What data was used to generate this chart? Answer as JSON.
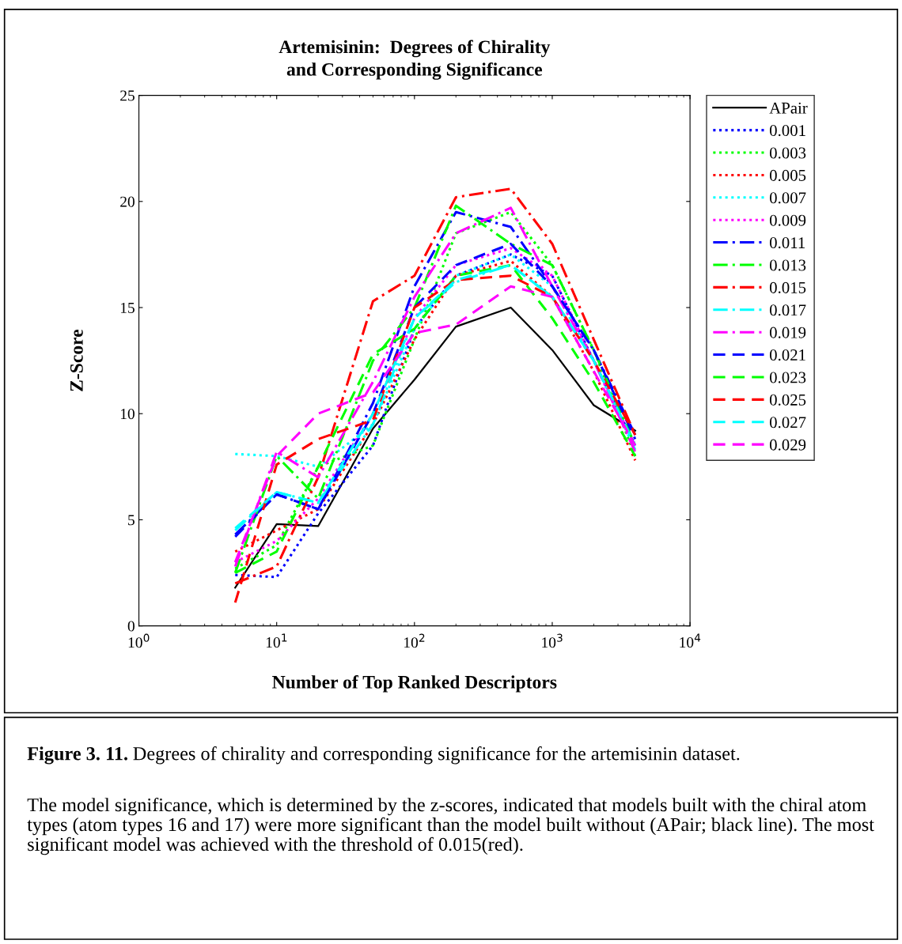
{
  "chart_data": {
    "type": "line",
    "title": "Artemisinin:  Degrees of Chirality\nand Corresponding Significance",
    "xlabel": "Number of Top Ranked Descriptors",
    "ylabel": "Z-Score",
    "x": [
      5,
      10,
      20,
      50,
      100,
      200,
      500,
      1000,
      2000,
      4000
    ],
    "log": "x",
    "xlim": [
      1,
      10000
    ],
    "xticks": [
      {
        "value": 1,
        "label": "10$^{0}$"
      },
      {
        "value": 10,
        "label": "10$^{1}$"
      },
      {
        "value": 100,
        "label": "10$^{2}$"
      },
      {
        "value": 1000,
        "label": "10$^{3}$"
      },
      {
        "value": 10000,
        "label": "10$^{4}$"
      }
    ],
    "ylim": [
      0,
      25
    ],
    "yticks": [
      0,
      5,
      10,
      15,
      20,
      25
    ],
    "grid": false,
    "legend": "right",
    "marker": "none",
    "series": [
      {
        "name": "APair",
        "color": "#000000",
        "line_style": "solid",
        "values": [
          1.8,
          4.8,
          4.7,
          9.3,
          11.6,
          14.1,
          15.0,
          13.0,
          10.4,
          9.2
        ]
      },
      {
        "name": "0.001",
        "color": "#0000ff",
        "line_style": "dotted",
        "values": [
          2.4,
          2.3,
          5.3,
          8.5,
          14.0,
          16.5,
          17.5,
          16.5,
          12.5,
          8.5
        ]
      },
      {
        "name": "0.003",
        "color": "#00ff00",
        "line_style": "dotted",
        "values": [
          2.7,
          3.8,
          7.5,
          8.5,
          13.5,
          18.5,
          19.5,
          17.0,
          13.0,
          8.0
        ]
      },
      {
        "name": "0.005",
        "color": "#ff0000",
        "line_style": "dotted",
        "values": [
          3.5,
          4.5,
          5.5,
          9.5,
          13.5,
          16.5,
          17.2,
          15.5,
          12.0,
          7.8
        ]
      },
      {
        "name": "0.007",
        "color": "#00ffff",
        "line_style": "dotted",
        "values": [
          8.1,
          8.0,
          7.5,
          9.5,
          14.0,
          16.5,
          17.5,
          16.0,
          12.5,
          8.5
        ]
      },
      {
        "name": "0.009",
        "color": "#ff00ff",
        "line_style": "dotted",
        "values": [
          3.0,
          4.0,
          6.0,
          10.0,
          14.5,
          17.0,
          17.8,
          16.5,
          12.5,
          8.5
        ]
      },
      {
        "name": "0.011",
        "color": "#0000ff",
        "line_style": "dashdot",
        "values": [
          4.3,
          6.2,
          5.5,
          10.5,
          16.0,
          19.5,
          18.8,
          16.0,
          13.0,
          9.0
        ]
      },
      {
        "name": "0.013",
        "color": "#00ff00",
        "line_style": "dashdot",
        "values": [
          2.5,
          8.0,
          6.0,
          12.5,
          15.0,
          19.8,
          18.0,
          17.0,
          13.0,
          8.5
        ]
      },
      {
        "name": "0.015",
        "color": "#ff0000",
        "line_style": "dashdot",
        "values": [
          2.0,
          2.8,
          7.0,
          15.3,
          16.5,
          20.2,
          20.6,
          18.0,
          13.5,
          9.0
        ]
      },
      {
        "name": "0.017",
        "color": "#00ffff",
        "line_style": "dashdot",
        "values": [
          4.5,
          6.3,
          5.8,
          9.5,
          14.5,
          16.2,
          17.0,
          15.5,
          12.5,
          8.3
        ]
      },
      {
        "name": "0.019",
        "color": "#ff00ff",
        "line_style": "dashdot",
        "values": [
          2.8,
          8.2,
          7.0,
          11.5,
          15.5,
          18.5,
          19.7,
          16.0,
          12.5,
          8.2
        ]
      },
      {
        "name": "0.021",
        "color": "#0000ff",
        "line_style": "dashed",
        "values": [
          4.2,
          6.2,
          5.5,
          10.0,
          15.0,
          17.0,
          18.0,
          16.0,
          13.0,
          8.8
        ]
      },
      {
        "name": "0.023",
        "color": "#00ff00",
        "line_style": "dashed",
        "values": [
          2.5,
          3.5,
          7.5,
          12.8,
          14.0,
          16.5,
          17.0,
          14.5,
          11.5,
          8.0
        ]
      },
      {
        "name": "0.025",
        "color": "#ff0000",
        "line_style": "dashed",
        "values": [
          1.1,
          7.6,
          8.8,
          9.7,
          15.0,
          16.3,
          16.5,
          15.5,
          12.5,
          9.0
        ]
      },
      {
        "name": "0.027",
        "color": "#00ffff",
        "line_style": "dashed",
        "values": [
          4.6,
          6.3,
          5.8,
          10.0,
          14.5,
          16.3,
          17.0,
          15.5,
          12.5,
          8.5
        ]
      },
      {
        "name": "0.029",
        "color": "#ff00ff",
        "line_style": "dashed",
        "values": [
          3.0,
          8.0,
          10.0,
          11.0,
          13.8,
          14.2,
          16.0,
          15.5,
          12.0,
          8.5
        ]
      }
    ],
    "annotations": [
      "Figure 3. 11.",
      "Degrees of chirality and corresponding significance for the artemisinin dataset.",
      "The model significance, which is determined by the z-scores, indicated that models built with the chiral atom types (atom types 16 and 17) were more significant than the model built without (APair; black line). The most significant model was achieved with the threshold of 0.015(red)."
    ]
  }
}
